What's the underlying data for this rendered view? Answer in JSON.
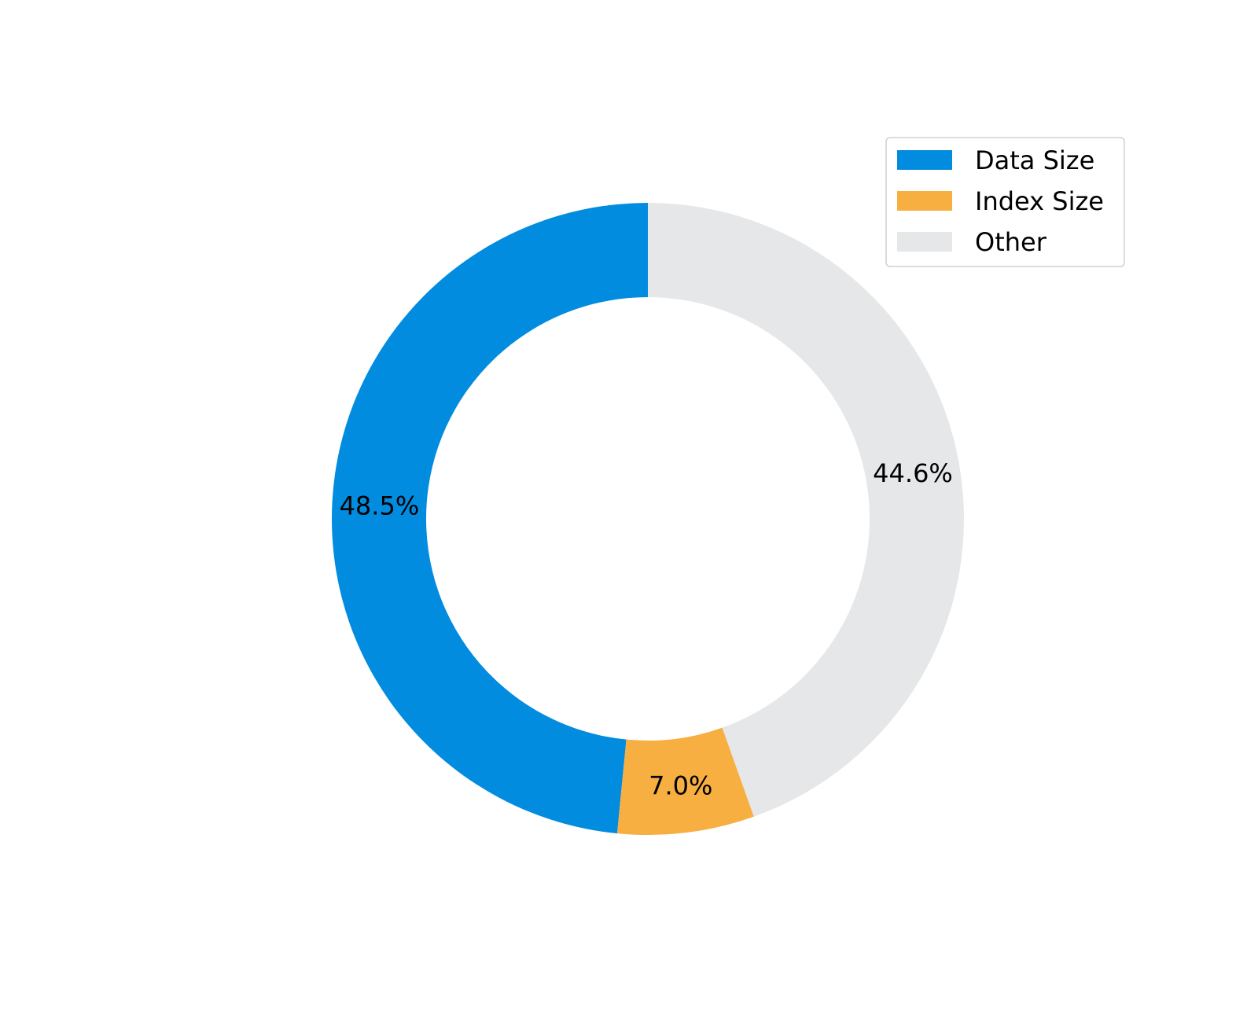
{
  "chart_data": {
    "type": "pie",
    "donut": true,
    "labels": [
      "Data Size",
      "Index Size",
      "Other"
    ],
    "values": [
      48.5,
      7.0,
      44.6
    ],
    "value_labels": [
      "48.5%",
      "7.0%",
      "44.6%"
    ],
    "colors": [
      "#028ce0",
      "#f7af42",
      "#e6e7e8"
    ],
    "start": "top",
    "direction": "counterclockwise",
    "legend_position": "top-right"
  }
}
